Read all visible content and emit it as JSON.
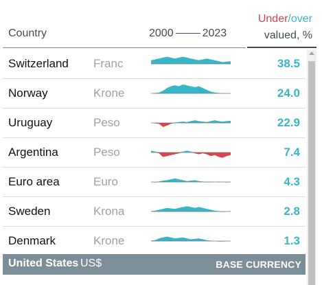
{
  "header": {
    "country": "Country",
    "year_start": "2000",
    "year_end": "2023",
    "under": "Under",
    "slash": "/",
    "over": "over",
    "valued": "valued, %"
  },
  "rows": [
    {
      "country": "Switzerland",
      "currency": "Franc",
      "value": "38.5",
      "spark": [
        0.4,
        0.5,
        0.6,
        0.7,
        0.8,
        0.7,
        0.6,
        0.7,
        0.8,
        0.7,
        0.6,
        0.5,
        0.4,
        0.5,
        0.6,
        0.5,
        0.4,
        0.3,
        0.2,
        0.25,
        0.3
      ]
    },
    {
      "country": "Norway",
      "currency": "Krone",
      "value": "24.0",
      "spark": [
        0.0,
        0.05,
        0.1,
        0.3,
        0.6,
        0.8,
        0.9,
        0.8,
        1.0,
        0.9,
        0.8,
        0.7,
        0.8,
        0.6,
        0.4,
        0.2,
        0.1,
        0.05,
        0.02,
        0.01,
        0.0
      ]
    },
    {
      "country": "Uruguay",
      "currency": "Peso",
      "value": "22.9",
      "spark": [
        0.0,
        -0.05,
        -0.1,
        -0.45,
        -0.3,
        -0.1,
        0.05,
        0.1,
        0.15,
        0.1,
        0.2,
        0.3,
        0.2,
        0.15,
        0.1,
        0.2,
        0.3,
        0.2,
        0.15,
        0.2,
        0.25
      ]
    },
    {
      "country": "Argentina",
      "currency": "Peso",
      "value": "7.4",
      "spark": [
        0.2,
        0.1,
        -0.1,
        -0.5,
        -0.4,
        -0.3,
        -0.2,
        -0.1,
        0.1,
        0.2,
        0.1,
        -0.1,
        -0.2,
        -0.1,
        -0.2,
        -0.4,
        -0.3,
        -0.5,
        -0.6,
        -0.4,
        -0.3
      ]
    },
    {
      "country": "Euro area",
      "currency": "Euro",
      "value": "4.3",
      "spark": [
        0.0,
        -0.05,
        0.05,
        0.15,
        0.2,
        0.3,
        0.4,
        0.3,
        0.2,
        0.1,
        0.15,
        0.2,
        0.1,
        0.05,
        -0.05,
        0.05,
        0.0,
        0.05,
        -0.02,
        -0.05,
        0.02
      ]
    },
    {
      "country": "Sweden",
      "currency": "Krona",
      "value": "2.8",
      "spark": [
        0.05,
        0.1,
        0.2,
        0.3,
        0.4,
        0.35,
        0.3,
        0.4,
        0.5,
        0.6,
        0.5,
        0.4,
        0.5,
        0.4,
        0.3,
        0.2,
        0.1,
        0.05,
        -0.05,
        0.0,
        0.05
      ]
    },
    {
      "country": "Denmark",
      "currency": "Krone",
      "value": "1.3",
      "spark": [
        0.05,
        0.1,
        0.3,
        0.4,
        0.5,
        0.4,
        0.3,
        0.35,
        0.4,
        0.3,
        0.2,
        0.25,
        0.3,
        0.2,
        0.1,
        0.05,
        0.0,
        -0.05,
        -0.05,
        -0.03,
        0.0
      ]
    }
  ],
  "base": {
    "country": "United States",
    "currency": "US$",
    "note": "BASE CURRENCY"
  },
  "colors": {
    "over": "#38b6c8",
    "under": "#d8434d",
    "base_bg": "#7c8f99"
  }
}
